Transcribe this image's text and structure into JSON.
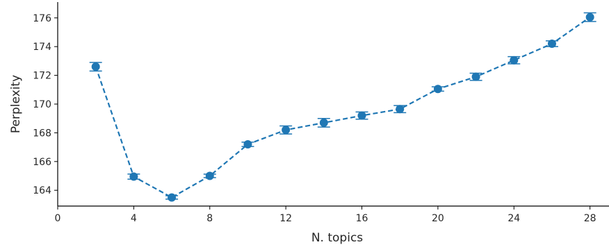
{
  "chart_data": {
    "type": "line",
    "xlabel": "N. topics",
    "ylabel": "Perplexity",
    "xlim": [
      0,
      29
    ],
    "ylim": [
      162.9,
      177.1
    ],
    "x_ticks": [
      0,
      4,
      8,
      12,
      16,
      20,
      24,
      28
    ],
    "y_ticks": [
      164,
      166,
      168,
      170,
      172,
      174,
      176
    ],
    "grid": false,
    "line_style": "dashed",
    "marker": "circle",
    "color": "#1f77b4",
    "series": [
      {
        "x": [
          2,
          4,
          6,
          8,
          10,
          12,
          14,
          16,
          18,
          20,
          22,
          24,
          26,
          28
        ],
        "y": [
          172.6,
          164.95,
          163.5,
          165.0,
          167.2,
          168.2,
          168.7,
          169.2,
          169.65,
          171.05,
          171.9,
          173.05,
          174.2,
          176.05
        ],
        "error": [
          0.3,
          0.18,
          0.12,
          0.12,
          0.15,
          0.28,
          0.3,
          0.25,
          0.25,
          0.15,
          0.25,
          0.25,
          0.2,
          0.3
        ]
      }
    ]
  }
}
